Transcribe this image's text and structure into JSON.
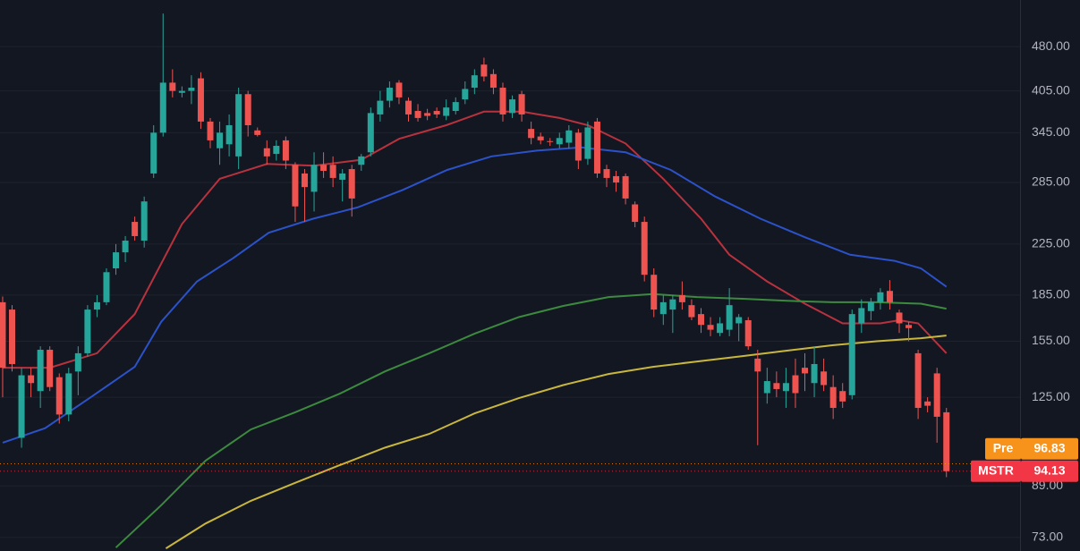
{
  "chart_data": {
    "type": "candlestick",
    "log_scale": true,
    "grid": true,
    "background": "#131722",
    "xlim": [
      -0.28,
      107.8
    ],
    "ylim": [
      69.3,
      574
    ],
    "yticks": [
      {
        "value": 480,
        "label": "480.00"
      },
      {
        "value": 405,
        "label": "405.00"
      },
      {
        "value": 345,
        "label": "345.00"
      },
      {
        "value": 285,
        "label": "285.00"
      },
      {
        "value": 225,
        "label": "225.00"
      },
      {
        "value": 185,
        "label": "185.00"
      },
      {
        "value": 155,
        "label": "155.00"
      },
      {
        "value": 125,
        "label": "125.00"
      },
      {
        "value": 89,
        "label": "89.00"
      },
      {
        "value": 73,
        "label": "73.00"
      }
    ],
    "candles": {
      "up_color": "#26a69a",
      "down_color": "#ef5350",
      "open": [
        180,
        175,
        107,
        136,
        128,
        150,
        135,
        117,
        138,
        148,
        175,
        180,
        205,
        218,
        245,
        228,
        295,
        345,
        418,
        402,
        405,
        425,
        360,
        325,
        330,
        315,
        400,
        348,
        325,
        318,
        335,
        305,
        295,
        275,
        305,
        305,
        288,
        300,
        305,
        320,
        370,
        390,
        418,
        390,
        375,
        372,
        375,
        368,
        375,
        392,
        410,
        448,
        432,
        410,
        372,
        400,
        350,
        340,
        334,
        330,
        332,
        345,
        312,
        360,
        300,
        292,
        292,
        262,
        245,
        200,
        172,
        175,
        185,
        178,
        172,
        165,
        160,
        162,
        166,
        168,
        145,
        127,
        132,
        128,
        136,
        140,
        132,
        138,
        130,
        128,
        126,
        166,
        174,
        180,
        188,
        173,
        165,
        148,
        123,
        137,
        118
      ],
      "high": [
        184,
        178,
        140,
        140,
        152,
        152,
        137,
        140,
        152,
        178,
        185,
        205,
        225,
        232,
        250,
        270,
        355,
        545,
        440,
        412,
        430,
        435,
        365,
        360,
        370,
        410,
        405,
        352,
        335,
        335,
        340,
        308,
        300,
        320,
        320,
        315,
        300,
        305,
        318,
        380,
        405,
        420,
        422,
        395,
        385,
        378,
        380,
        392,
        395,
        420,
        440,
        460,
        440,
        418,
        398,
        405,
        360,
        345,
        338,
        345,
        355,
        350,
        360,
        365,
        305,
        298,
        295,
        265,
        250,
        205,
        185,
        185,
        195,
        182,
        176,
        170,
        170,
        190,
        172,
        170,
        150,
        140,
        138,
        140,
        145,
        148,
        152,
        145,
        136,
        132,
        175,
        182,
        183,
        190,
        196,
        175,
        167,
        150,
        125,
        140,
        120
      ],
      "low": [
        125,
        138,
        103,
        125,
        120,
        128,
        113,
        114,
        126,
        146,
        170,
        178,
        200,
        210,
        228,
        222,
        290,
        340,
        395,
        395,
        385,
        350,
        325,
        305,
        315,
        300,
        340,
        340,
        305,
        310,
        300,
        245,
        245,
        255,
        290,
        280,
        265,
        250,
        298,
        315,
        360,
        380,
        385,
        360,
        360,
        362,
        365,
        362,
        370,
        385,
        400,
        420,
        400,
        360,
        365,
        360,
        330,
        330,
        328,
        325,
        325,
        300,
        305,
        290,
        280,
        275,
        262,
        240,
        195,
        170,
        165,
        160,
        175,
        168,
        160,
        158,
        158,
        158,
        155,
        150,
        104,
        122,
        125,
        120,
        120,
        128,
        125,
        128,
        115,
        120,
        124,
        160,
        168,
        175,
        175,
        160,
        155,
        115,
        118,
        105,
        92
      ],
      "close": [
        140,
        142,
        136,
        132,
        150,
        130,
        117,
        137,
        148,
        175,
        180,
        202,
        218,
        228,
        232,
        265,
        345,
        418,
        405,
        405,
        410,
        360,
        335,
        345,
        355,
        400,
        355,
        342,
        315,
        328,
        310,
        260,
        280,
        305,
        298,
        290,
        295,
        268,
        315,
        372,
        390,
        410,
        395,
        370,
        365,
        368,
        370,
        380,
        388,
        408,
        430,
        428,
        410,
        370,
        392,
        370,
        338,
        335,
        333,
        338,
        348,
        310,
        352,
        295,
        290,
        285,
        268,
        245,
        200,
        175,
        180,
        182,
        180,
        170,
        165,
        162,
        166,
        178,
        170,
        152,
        138,
        133,
        129,
        132,
        127,
        137,
        142,
        131,
        120,
        123,
        172,
        176,
        180,
        187,
        180,
        166,
        163,
        120,
        121,
        116,
        94.13
      ]
    },
    "lines": [
      {
        "color": "#b8323e",
        "x": [
          0,
          5,
          10,
          14,
          19,
          23,
          28,
          33,
          38,
          42,
          47,
          51,
          55,
          59,
          62,
          66,
          70,
          74,
          77,
          81,
          85,
          89,
          93,
          95,
          97,
          100
        ],
        "values": [
          140,
          140,
          148,
          172,
          243,
          289,
          306,
          304,
          311,
          337,
          355,
          374,
          374,
          365,
          355,
          331,
          289,
          248,
          216,
          195,
          179,
          166,
          166,
          168,
          166,
          148
        ]
      },
      {
        "color": "#2b52c9",
        "x": [
          0,
          4.5,
          9.2,
          14,
          16.8,
          20.6,
          24.4,
          28.2,
          32.9,
          37.6,
          42.4,
          47.1,
          51.8,
          56.6,
          61.3,
          66,
          70.8,
          75.5,
          80.3,
          85,
          89.8,
          94.5,
          97.3,
          100
        ],
        "values": [
          105,
          111,
          124.6,
          140.5,
          167,
          195,
          213,
          235,
          248,
          259,
          277,
          299,
          315,
          322,
          326,
          320,
          299,
          270,
          248,
          231,
          216,
          211,
          205,
          191
        ]
      },
      {
        "color": "#3b8a3e",
        "x": [
          12,
          16.8,
          21.5,
          26.3,
          31,
          35.7,
          40.5,
          45.2,
          50,
          54.7,
          59.4,
          64.2,
          68.9,
          73.6,
          78.4,
          83.1,
          87.9,
          92.6,
          97.3,
          100
        ],
        "values": [
          70.2,
          82.6,
          98,
          110.5,
          118,
          126.7,
          138,
          148,
          159.5,
          170,
          177.5,
          183.6,
          185.7,
          183.6,
          182.4,
          181,
          180,
          180,
          179,
          175.6
        ]
      },
      {
        "color": "#c9b63c",
        "x": [
          17.3,
          21.5,
          26.3,
          31,
          35.7,
          40.5,
          45.2,
          50,
          54.7,
          59.4,
          64.2,
          68.9,
          73.6,
          78.4,
          83.1,
          87.9,
          92.6,
          97.3,
          100
        ],
        "values": [
          70,
          77,
          84,
          90,
          96.3,
          103,
          108.6,
          117.5,
          124.6,
          131,
          136.7,
          140.5,
          143.4,
          146.4,
          149.5,
          152.6,
          155,
          156.8,
          158.4
        ]
      }
    ],
    "price_labels": [
      {
        "label": "Pre",
        "value": 96.83,
        "color": "#f7931a"
      },
      {
        "label": "MSTR",
        "value": 94.13,
        "color": "#f23645"
      }
    ]
  }
}
